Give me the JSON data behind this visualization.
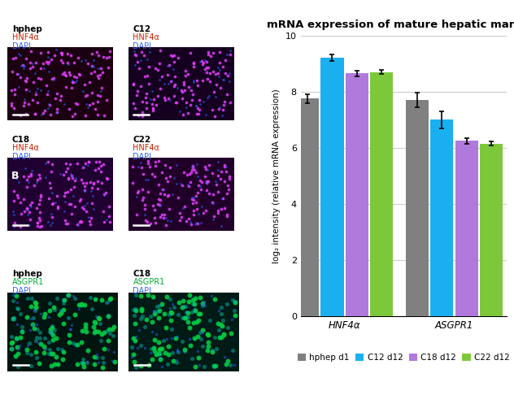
{
  "title": "mRNA expression of mature hepatic markers",
  "ylabel": "log₂ intensity (relative mRNA expression)",
  "groups": [
    "HNF4α",
    "ASGPR1"
  ],
  "series": [
    "hphep d1",
    "C12 d12",
    "C18 d12",
    "C22 d12"
  ],
  "values": {
    "HNF4α": [
      7.75,
      9.2,
      8.65,
      8.7
    ],
    "ASGPR1": [
      7.7,
      7.0,
      6.25,
      6.15
    ]
  },
  "errors": {
    "HNF4α": [
      0.15,
      0.12,
      0.1,
      0.07
    ],
    "ASGPR1": [
      0.25,
      0.3,
      0.1,
      0.08
    ]
  },
  "colors": [
    "#808080",
    "#1ab0f0",
    "#b07adc",
    "#7dc83a"
  ],
  "ylim": [
    0,
    10
  ],
  "yticks": [
    0,
    2,
    4,
    6,
    8,
    10
  ],
  "bar_width": 0.18,
  "background_color": "#ffffff",
  "grid_color": "#cccccc",
  "panel_A_bg": [
    "#1a0010",
    "#150020",
    "#200030",
    "#200028"
  ],
  "panel_B_bg": [
    "#001510",
    "#001a15"
  ],
  "a_labels": [
    "hphep",
    "C12",
    "C18",
    "C22"
  ],
  "b_labels": [
    "hphep",
    "C18"
  ],
  "label_cyan": "#00bfff",
  "dot_magenta": "#e040fb",
  "dot_blue": "#3060ff",
  "dot_green": "#00cc44",
  "dot_teal": "#00bbaa",
  "marker_red": "#cc2200",
  "marker_green": "#00aa33",
  "marker_blue_text": "#3366ff"
}
